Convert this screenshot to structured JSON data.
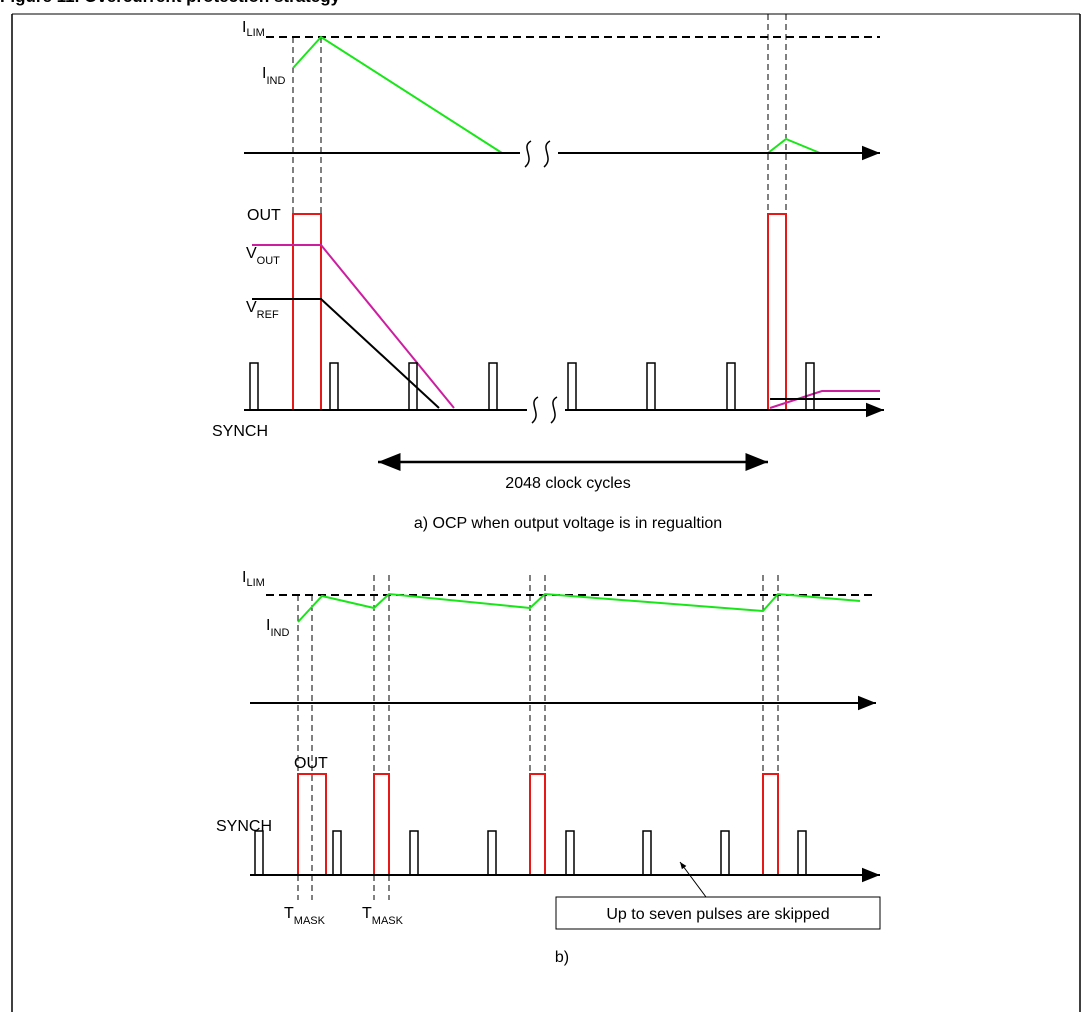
{
  "caption": "Figure 11. Overcurrent protection strategy",
  "colors": {
    "inductor_current": "#19e619",
    "out_pulse": "#e61919",
    "v_out": "#cc1fa0",
    "v_ref": "#000000",
    "synch": "#000000",
    "axis": "#000000"
  },
  "panel_a": {
    "labels": {
      "i_lim": "I",
      "i_lim_sub": "LIM",
      "i_ind": "I",
      "i_ind_sub": "IND",
      "out": "OUT",
      "v_out": "V",
      "v_out_sub": "OUT",
      "v_ref": "V",
      "v_ref_sub": "REF",
      "synch": "SYNCH"
    },
    "span_label": "2048 clock cycles",
    "title": "a) OCP when output voltage is in regualtion"
  },
  "panel_b": {
    "labels": {
      "i_lim": "I",
      "i_lim_sub": "LIM",
      "i_ind": "I",
      "i_ind_sub": "IND",
      "out": "OUT",
      "synch": "SYNCH",
      "t_mask_1": "T",
      "t_mask_1_sub": "MASK",
      "t_mask_2": "T",
      "t_mask_2_sub": "MASK"
    },
    "callout": "Up to seven pulses are skipped",
    "title": "b)"
  }
}
